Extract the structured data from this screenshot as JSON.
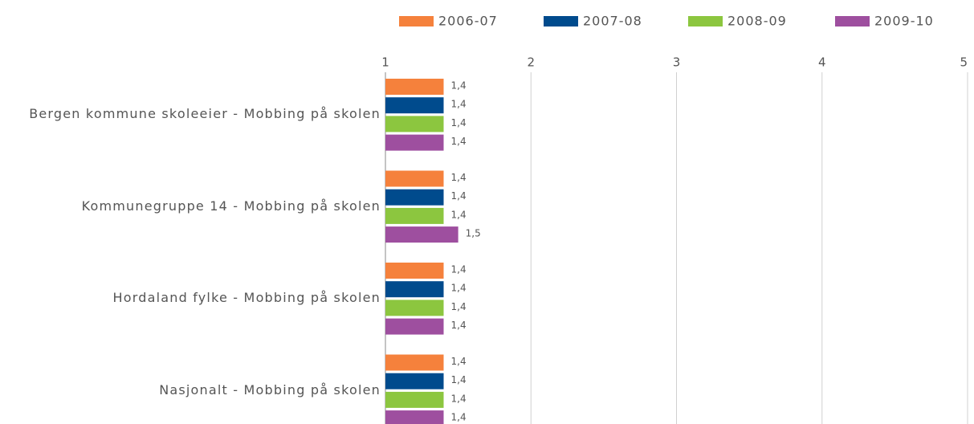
{
  "chart_data": {
    "type": "barh",
    "categories": [
      "Bergen kommune skoleeier - Mobbing på skolen",
      "Kommunegruppe 14 - Mobbing på skolen",
      "Hordaland fylke - Mobbing på skolen",
      "Nasjonalt - Mobbing på skolen"
    ],
    "series": [
      {
        "name": "2006-07",
        "color": "#f5813c",
        "values": [
          1.4,
          1.4,
          1.4,
          1.4
        ],
        "value_labels": [
          "1,4",
          "1,4",
          "1,4",
          "1,4"
        ]
      },
      {
        "name": "2007-08",
        "color": "#004b8d",
        "values": [
          1.4,
          1.4,
          1.4,
          1.4
        ],
        "value_labels": [
          "1,4",
          "1,4",
          "1,4",
          "1,4"
        ]
      },
      {
        "name": "2008-09",
        "color": "#8cc63f",
        "values": [
          1.4,
          1.4,
          1.4,
          1.4
        ],
        "value_labels": [
          "1,4",
          "1,4",
          "1,4",
          "1,4"
        ]
      },
      {
        "name": "2009-10",
        "color": "#9e4f9f",
        "values": [
          1.4,
          1.5,
          1.4,
          1.4
        ],
        "value_labels": [
          "1,4",
          "1,5",
          "1,4",
          "1,4"
        ]
      }
    ],
    "xlim": [
      1,
      5
    ],
    "xticks": [
      1,
      2,
      3,
      4,
      5
    ],
    "grid": true,
    "legend": "top"
  }
}
